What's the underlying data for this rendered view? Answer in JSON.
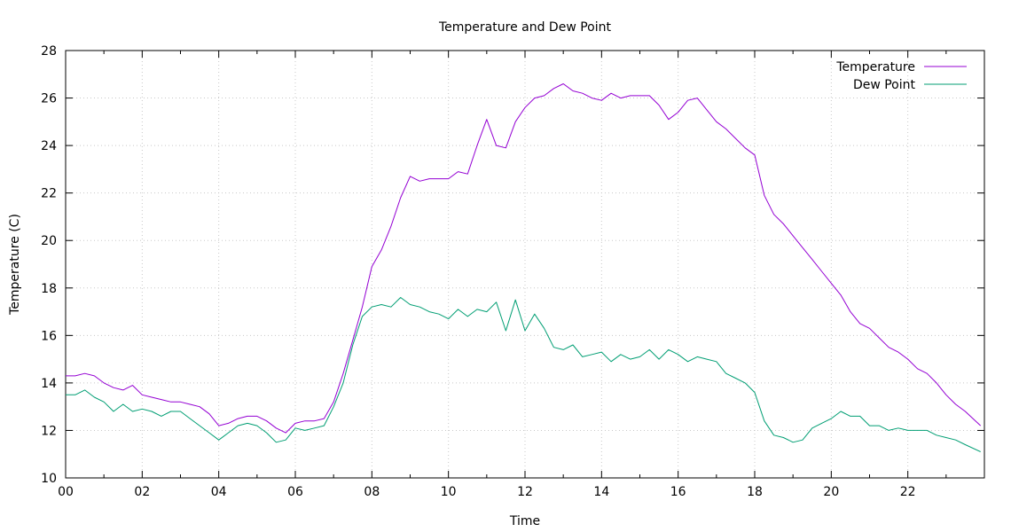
{
  "chart_data": {
    "type": "line",
    "title": "Temperature and Dew Point",
    "xlabel": "Time",
    "ylabel": "Temperature (C)",
    "xlim": [
      0,
      24
    ],
    "ylim": [
      10,
      28
    ],
    "x_ticks": [
      "00",
      "02",
      "04",
      "06",
      "08",
      "10",
      "12",
      "14",
      "16",
      "18",
      "20",
      "22"
    ],
    "y_ticks": [
      "10",
      "12",
      "14",
      "16",
      "18",
      "20",
      "22",
      "24",
      "26",
      "28"
    ],
    "grid": true,
    "legend_position": "top-right",
    "series": [
      {
        "name": "Temperature",
        "color": "#9400d3",
        "points": [
          [
            0.0,
            14.3
          ],
          [
            0.25,
            14.3
          ],
          [
            0.5,
            14.4
          ],
          [
            0.75,
            14.3
          ],
          [
            1.0,
            14.0
          ],
          [
            1.25,
            13.8
          ],
          [
            1.5,
            13.7
          ],
          [
            1.75,
            13.9
          ],
          [
            2.0,
            13.5
          ],
          [
            2.25,
            13.4
          ],
          [
            2.5,
            13.3
          ],
          [
            2.75,
            13.2
          ],
          [
            3.0,
            13.2
          ],
          [
            3.25,
            13.1
          ],
          [
            3.5,
            13.0
          ],
          [
            3.75,
            12.7
          ],
          [
            4.0,
            12.2
          ],
          [
            4.25,
            12.3
          ],
          [
            4.5,
            12.5
          ],
          [
            4.75,
            12.6
          ],
          [
            5.0,
            12.6
          ],
          [
            5.25,
            12.4
          ],
          [
            5.5,
            12.1
          ],
          [
            5.75,
            11.9
          ],
          [
            6.0,
            12.3
          ],
          [
            6.25,
            12.4
          ],
          [
            6.5,
            12.4
          ],
          [
            6.75,
            12.5
          ],
          [
            7.0,
            13.2
          ],
          [
            7.25,
            14.4
          ],
          [
            7.5,
            15.8
          ],
          [
            7.75,
            17.2
          ],
          [
            8.0,
            18.9
          ],
          [
            8.25,
            19.6
          ],
          [
            8.5,
            20.6
          ],
          [
            8.75,
            21.8
          ],
          [
            9.0,
            22.7
          ],
          [
            9.25,
            22.5
          ],
          [
            9.5,
            22.6
          ],
          [
            9.75,
            22.6
          ],
          [
            10.0,
            22.6
          ],
          [
            10.25,
            22.9
          ],
          [
            10.5,
            22.8
          ],
          [
            10.75,
            24.0
          ],
          [
            11.0,
            25.1
          ],
          [
            11.25,
            24.0
          ],
          [
            11.5,
            23.9
          ],
          [
            11.75,
            25.0
          ],
          [
            12.0,
            25.6
          ],
          [
            12.25,
            26.0
          ],
          [
            12.5,
            26.1
          ],
          [
            12.75,
            26.4
          ],
          [
            13.0,
            26.6
          ],
          [
            13.25,
            26.3
          ],
          [
            13.5,
            26.2
          ],
          [
            13.75,
            26.0
          ],
          [
            14.0,
            25.9
          ],
          [
            14.25,
            26.2
          ],
          [
            14.5,
            26.0
          ],
          [
            14.75,
            26.1
          ],
          [
            15.0,
            26.1
          ],
          [
            15.25,
            26.1
          ],
          [
            15.5,
            25.7
          ],
          [
            15.75,
            25.1
          ],
          [
            16.0,
            25.4
          ],
          [
            16.25,
            25.9
          ],
          [
            16.5,
            26.0
          ],
          [
            16.75,
            25.5
          ],
          [
            17.0,
            25.0
          ],
          [
            17.25,
            24.7
          ],
          [
            17.5,
            24.3
          ],
          [
            17.75,
            23.9
          ],
          [
            18.0,
            23.6
          ],
          [
            18.25,
            21.9
          ],
          [
            18.5,
            21.1
          ],
          [
            18.75,
            20.7
          ],
          [
            19.0,
            20.2
          ],
          [
            19.25,
            19.7
          ],
          [
            19.5,
            19.2
          ],
          [
            19.75,
            18.7
          ],
          [
            20.0,
            18.2
          ],
          [
            20.25,
            17.7
          ],
          [
            20.5,
            17.0
          ],
          [
            20.75,
            16.5
          ],
          [
            21.0,
            16.3
          ],
          [
            21.25,
            15.9
          ],
          [
            21.5,
            15.5
          ],
          [
            21.75,
            15.3
          ],
          [
            22.0,
            15.0
          ],
          [
            22.25,
            14.6
          ],
          [
            22.5,
            14.4
          ],
          [
            22.75,
            14.0
          ],
          [
            23.0,
            13.5
          ],
          [
            23.25,
            13.1
          ],
          [
            23.5,
            12.8
          ],
          [
            23.9,
            12.2
          ]
        ]
      },
      {
        "name": "Dew Point",
        "color": "#009e73",
        "points": [
          [
            0.0,
            13.5
          ],
          [
            0.25,
            13.5
          ],
          [
            0.5,
            13.7
          ],
          [
            0.75,
            13.4
          ],
          [
            1.0,
            13.2
          ],
          [
            1.25,
            12.8
          ],
          [
            1.5,
            13.1
          ],
          [
            1.75,
            12.8
          ],
          [
            2.0,
            12.9
          ],
          [
            2.25,
            12.8
          ],
          [
            2.5,
            12.6
          ],
          [
            2.75,
            12.8
          ],
          [
            3.0,
            12.8
          ],
          [
            3.25,
            12.5
          ],
          [
            3.5,
            12.2
          ],
          [
            3.75,
            11.9
          ],
          [
            4.0,
            11.6
          ],
          [
            4.25,
            11.9
          ],
          [
            4.5,
            12.2
          ],
          [
            4.75,
            12.3
          ],
          [
            5.0,
            12.2
          ],
          [
            5.25,
            11.9
          ],
          [
            5.5,
            11.5
          ],
          [
            5.75,
            11.6
          ],
          [
            6.0,
            12.1
          ],
          [
            6.25,
            12.0
          ],
          [
            6.5,
            12.1
          ],
          [
            6.75,
            12.2
          ],
          [
            7.0,
            13.0
          ],
          [
            7.25,
            14.0
          ],
          [
            7.5,
            15.6
          ],
          [
            7.75,
            16.8
          ],
          [
            8.0,
            17.2
          ],
          [
            8.25,
            17.3
          ],
          [
            8.5,
            17.2
          ],
          [
            8.75,
            17.6
          ],
          [
            9.0,
            17.3
          ],
          [
            9.25,
            17.2
          ],
          [
            9.5,
            17.0
          ],
          [
            9.75,
            16.9
          ],
          [
            10.0,
            16.7
          ],
          [
            10.25,
            17.1
          ],
          [
            10.5,
            16.8
          ],
          [
            10.75,
            17.1
          ],
          [
            11.0,
            17.0
          ],
          [
            11.25,
            17.4
          ],
          [
            11.5,
            16.2
          ],
          [
            11.75,
            17.5
          ],
          [
            12.0,
            16.2
          ],
          [
            12.25,
            16.9
          ],
          [
            12.5,
            16.3
          ],
          [
            12.75,
            15.5
          ],
          [
            13.0,
            15.4
          ],
          [
            13.25,
            15.6
          ],
          [
            13.5,
            15.1
          ],
          [
            13.75,
            15.2
          ],
          [
            14.0,
            15.3
          ],
          [
            14.25,
            14.9
          ],
          [
            14.5,
            15.2
          ],
          [
            14.75,
            15.0
          ],
          [
            15.0,
            15.1
          ],
          [
            15.25,
            15.4
          ],
          [
            15.5,
            15.0
          ],
          [
            15.75,
            15.4
          ],
          [
            16.0,
            15.2
          ],
          [
            16.25,
            14.9
          ],
          [
            16.5,
            15.1
          ],
          [
            16.75,
            15.0
          ],
          [
            17.0,
            14.9
          ],
          [
            17.25,
            14.4
          ],
          [
            17.5,
            14.2
          ],
          [
            17.75,
            14.0
          ],
          [
            18.0,
            13.6
          ],
          [
            18.25,
            12.4
          ],
          [
            18.5,
            11.8
          ],
          [
            18.75,
            11.7
          ],
          [
            19.0,
            11.5
          ],
          [
            19.25,
            11.6
          ],
          [
            19.5,
            12.1
          ],
          [
            19.75,
            12.3
          ],
          [
            20.0,
            12.5
          ],
          [
            20.25,
            12.8
          ],
          [
            20.5,
            12.6
          ],
          [
            20.75,
            12.6
          ],
          [
            21.0,
            12.2
          ],
          [
            21.25,
            12.2
          ],
          [
            21.5,
            12.0
          ],
          [
            21.75,
            12.1
          ],
          [
            22.0,
            12.0
          ],
          [
            22.25,
            12.0
          ],
          [
            22.5,
            12.0
          ],
          [
            22.75,
            11.8
          ],
          [
            23.0,
            11.7
          ],
          [
            23.25,
            11.6
          ],
          [
            23.5,
            11.4
          ],
          [
            23.9,
            11.1
          ]
        ]
      }
    ]
  }
}
